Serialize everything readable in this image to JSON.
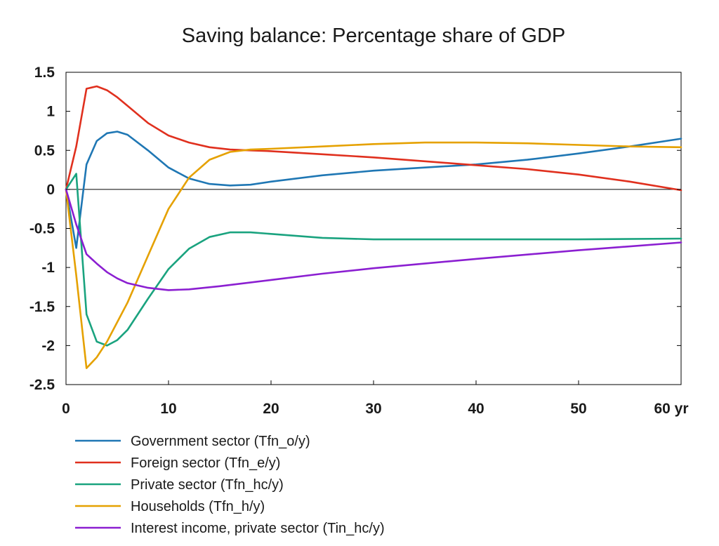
{
  "chart_data": {
    "type": "line",
    "title": "Saving balance: Percentage share of GDP",
    "x_unit_label": "yr",
    "xlim": [
      0,
      60
    ],
    "ylim": [
      -2.5,
      1.5
    ],
    "x_ticks": [
      0,
      10,
      20,
      30,
      40,
      50,
      60
    ],
    "x_tick_labels": [
      "0",
      "10",
      "20",
      "30",
      "40",
      "50",
      "60 yr"
    ],
    "y_ticks": [
      1.5,
      1,
      0.5,
      0,
      -0.5,
      -1,
      -1.5,
      -2,
      -2.5
    ],
    "y_tick_labels": [
      "1.5",
      "1",
      "0.5",
      "0",
      "-0.5",
      "-1",
      "-1.5",
      "-2",
      "-2.5"
    ],
    "grid": false,
    "zero_line": true,
    "legend_position": "bottom",
    "series": [
      {
        "name": "Government sector (Tfn_o/y)",
        "color": "#1f77b4",
        "x": [
          0,
          1,
          2,
          3,
          4,
          5,
          6,
          8,
          10,
          12,
          14,
          16,
          18,
          20,
          25,
          30,
          35,
          40,
          45,
          50,
          55,
          60
        ],
        "y": [
          0,
          -0.75,
          0.32,
          0.62,
          0.72,
          0.74,
          0.7,
          0.5,
          0.28,
          0.14,
          0.07,
          0.05,
          0.06,
          0.1,
          0.18,
          0.24,
          0.28,
          0.32,
          0.38,
          0.46,
          0.55,
          0.65
        ]
      },
      {
        "name": "Foreign sector (Tfn_e/y)",
        "color": "#e0301e",
        "x": [
          0,
          1,
          2,
          3,
          4,
          5,
          6,
          8,
          10,
          12,
          14,
          16,
          18,
          20,
          25,
          30,
          35,
          40,
          45,
          50,
          55,
          60
        ],
        "y": [
          0,
          0.55,
          1.29,
          1.32,
          1.27,
          1.18,
          1.07,
          0.85,
          0.69,
          0.6,
          0.54,
          0.51,
          0.5,
          0.49,
          0.45,
          0.41,
          0.36,
          0.31,
          0.26,
          0.19,
          0.1,
          -0.01
        ]
      },
      {
        "name": "Private sector (Tfn_hc/y)",
        "color": "#1aa37f",
        "x": [
          0,
          1,
          2,
          3,
          4,
          5,
          6,
          8,
          10,
          12,
          14,
          16,
          18,
          20,
          25,
          30,
          40,
          50,
          60
        ],
        "y": [
          0,
          0.2,
          -1.6,
          -1.95,
          -2.0,
          -1.93,
          -1.8,
          -1.4,
          -1.02,
          -0.76,
          -0.61,
          -0.55,
          -0.55,
          -0.57,
          -0.62,
          -0.64,
          -0.64,
          -0.64,
          -0.63
        ]
      },
      {
        "name": "Households (Tfn_h/y)",
        "color": "#e5a100",
        "x": [
          0,
          1,
          2,
          3,
          4,
          5,
          6,
          8,
          10,
          12,
          14,
          16,
          18,
          20,
          25,
          30,
          35,
          40,
          45,
          50,
          55,
          60
        ],
        "y": [
          0,
          -1.1,
          -2.29,
          -2.15,
          -1.95,
          -1.7,
          -1.45,
          -0.85,
          -0.25,
          0.15,
          0.38,
          0.48,
          0.51,
          0.52,
          0.55,
          0.58,
          0.6,
          0.6,
          0.59,
          0.57,
          0.55,
          0.54
        ]
      },
      {
        "name": "Interest income, private sector (Tin_hc/y)",
        "color": "#8b1fd1",
        "x": [
          0,
          1,
          2,
          3,
          4,
          5,
          6,
          8,
          10,
          12,
          15,
          20,
          25,
          30,
          40,
          50,
          60
        ],
        "y": [
          0,
          -0.45,
          -0.83,
          -0.95,
          -1.06,
          -1.14,
          -1.2,
          -1.26,
          -1.29,
          -1.28,
          -1.24,
          -1.16,
          -1.08,
          -1.01,
          -0.89,
          -0.78,
          -0.68
        ]
      }
    ]
  }
}
